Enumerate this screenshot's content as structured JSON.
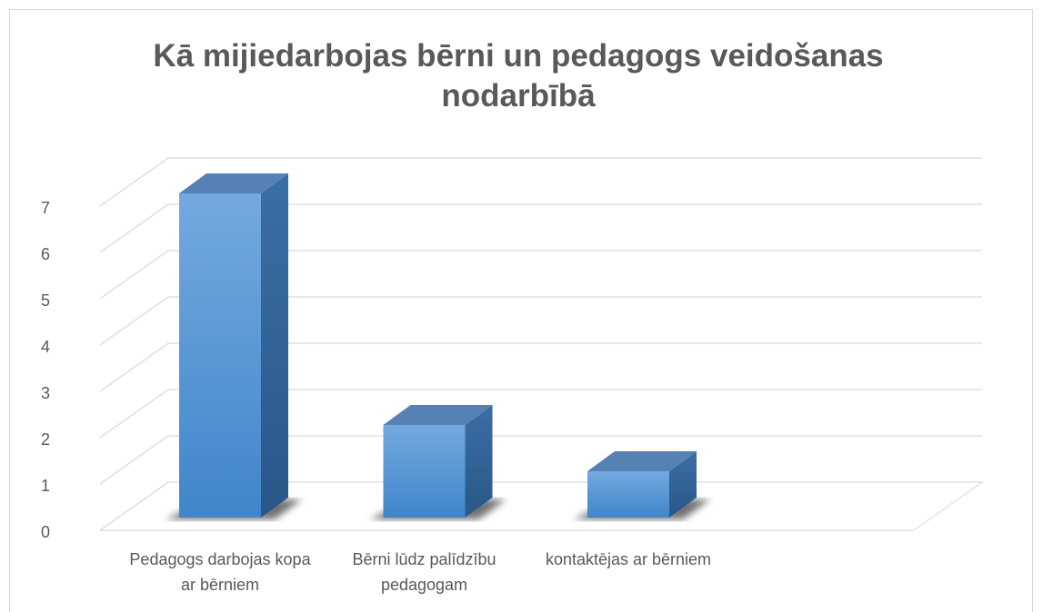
{
  "chart_data": {
    "type": "bar3d",
    "title": "Kā mijiedarbojas bērni un pedagogs veidošanas nodarbībā",
    "categories": [
      "Pedagogs darbojas kopa ar bērniem",
      "Bērni lūdz palīdzību pedagogam",
      "kontaktējas ar bērniem"
    ],
    "values": [
      7,
      2,
      1
    ],
    "color": "#5b9bd5",
    "ylim": [
      0,
      7
    ],
    "yticks": [
      0,
      1,
      2,
      3,
      4,
      5,
      6,
      7
    ],
    "grid": true
  }
}
